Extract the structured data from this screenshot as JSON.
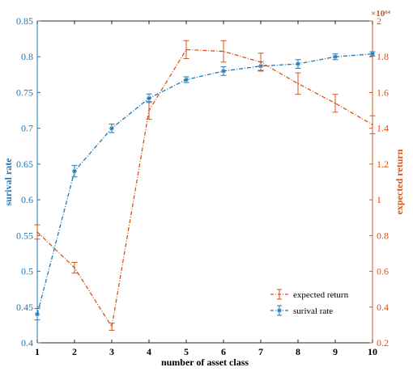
{
  "chart_data": {
    "type": "line",
    "xlabel": "number of asset class",
    "ylabel_left": "surival rate",
    "ylabel_right": "expected return",
    "right_axis_exponent": "×10⁶⁴",
    "x": [
      1,
      2,
      3,
      4,
      5,
      6,
      7,
      8,
      9,
      10
    ],
    "xlim": [
      1,
      10
    ],
    "ylim_left": [
      0.4,
      0.85
    ],
    "ylim_right": [
      0.2,
      2.0
    ],
    "xticks": [
      "1",
      "2",
      "3",
      "4",
      "5",
      "6",
      "7",
      "8",
      "9",
      "10"
    ],
    "yticks_left": [
      "0.4",
      "0.45",
      "0.5",
      "0.55",
      "0.6",
      "0.65",
      "0.7",
      "0.75",
      "0.8",
      "0.85"
    ],
    "yticks_right": [
      "0.2",
      "0.4",
      "0.6",
      "0.8",
      "1",
      "1.2",
      "1.4",
      "1.6",
      "1.8",
      "2"
    ],
    "legend_position": "lower-right",
    "series": [
      {
        "name": "surival rate",
        "axis": "left",
        "color": "#1f77b4",
        "marker": "asterisk",
        "line_style": "dash-dot",
        "values": [
          0.44,
          0.64,
          0.7,
          0.742,
          0.768,
          0.78,
          0.787,
          0.79,
          0.8,
          0.804
        ],
        "errors": [
          0.008,
          0.008,
          0.006,
          0.006,
          0.004,
          0.006,
          0.006,
          0.006,
          0.004,
          0.003
        ]
      },
      {
        "name": "expected return",
        "axis": "right",
        "color": "#d95319",
        "marker": "none",
        "line_style": "dash-dot",
        "values": [
          0.82,
          0.62,
          0.29,
          1.5,
          1.84,
          1.83,
          1.77,
          1.65,
          1.54,
          1.42
        ],
        "errors": [
          0.04,
          0.03,
          0.02,
          0.05,
          0.05,
          0.06,
          0.05,
          0.06,
          0.05,
          0.05
        ]
      }
    ]
  }
}
